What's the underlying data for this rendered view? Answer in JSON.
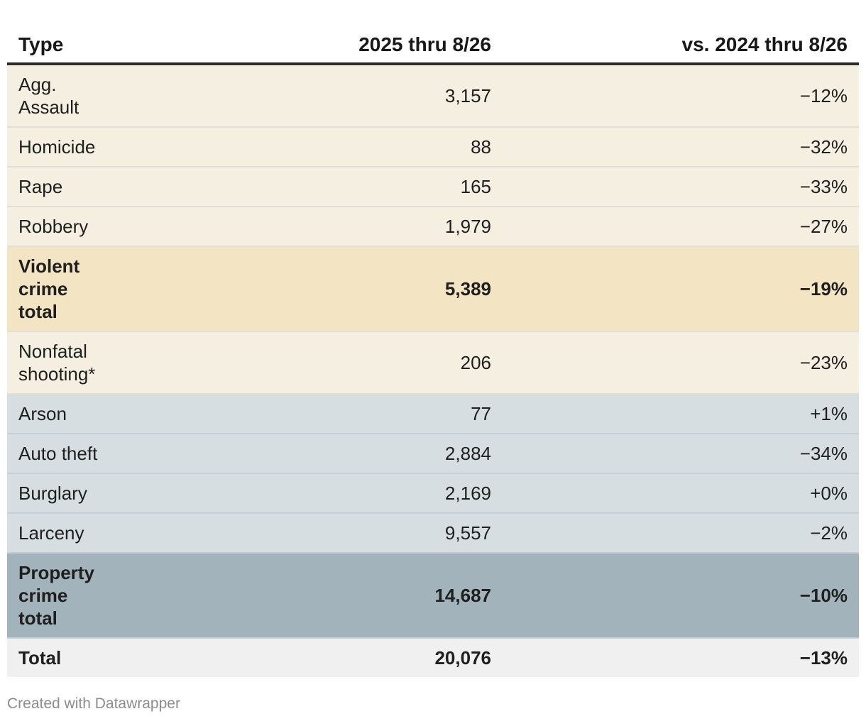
{
  "chart_data": {
    "type": "table",
    "columns": [
      "Type",
      "2025 thru 8/26",
      "vs. 2024 thru 8/26"
    ],
    "rows": [
      {
        "type": "Agg. Assault",
        "count_2025": "3,157",
        "change": "−12%",
        "group": "violent"
      },
      {
        "type": "Homicide",
        "count_2025": "88",
        "change": "−32%",
        "group": "violent"
      },
      {
        "type": "Rape",
        "count_2025": "165",
        "change": "−33%",
        "group": "violent"
      },
      {
        "type": "Robbery",
        "count_2025": "1,979",
        "change": "−27%",
        "group": "violent"
      },
      {
        "type": "Violent crime total",
        "count_2025": "5,389",
        "change": "−19%",
        "group": "violent-total"
      },
      {
        "type": "Nonfatal shooting*",
        "count_2025": "206",
        "change": "−23%",
        "group": "violent"
      },
      {
        "type": "Arson",
        "count_2025": "77",
        "change": "+1%",
        "group": "property"
      },
      {
        "type": "Auto theft",
        "count_2025": "2,884",
        "change": "−34%",
        "group": "property"
      },
      {
        "type": "Burglary",
        "count_2025": "2,169",
        "change": "+0%",
        "group": "property"
      },
      {
        "type": "Larceny",
        "count_2025": "9,557",
        "change": "−2%",
        "group": "property"
      },
      {
        "type": "Property crime total",
        "count_2025": "14,687",
        "change": "−10%",
        "group": "property-total"
      },
      {
        "type": "Total",
        "count_2025": "20,076",
        "change": "−13%",
        "group": "grand-total"
      }
    ]
  },
  "footer": {
    "credit": "Created with Datawrapper"
  },
  "colors": {
    "violent_row": "#f4efe1",
    "violent_total_row": "#f3e4c3",
    "property_row": "#d6dee1",
    "property_total_row": "#a3b3bb",
    "grand_total_row": "#f0f0f0"
  }
}
